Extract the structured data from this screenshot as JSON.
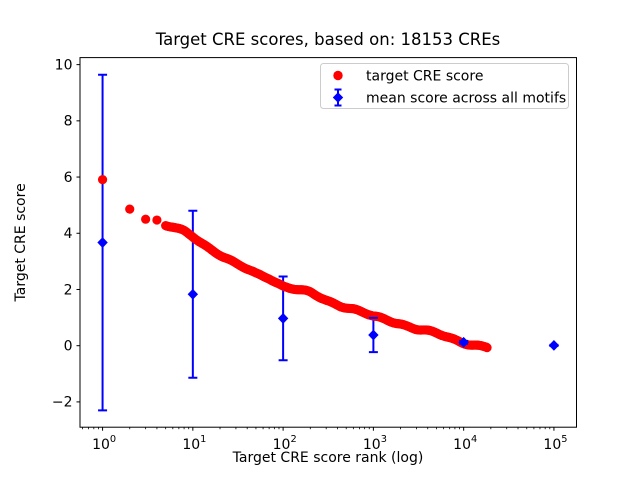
{
  "colors": {
    "background": "#ffffff",
    "axis": "#000000",
    "text": "#000000",
    "legend_border": "#cccccc",
    "red_series": "#ff0000",
    "blue_series": "#0000ff"
  },
  "chart_data": {
    "type": "scatter",
    "title": "Target CRE scores, based on: 18153 CREs",
    "xlabel": "Target CRE score rank (log)",
    "ylabel": "Target CRE score",
    "n_cres": 18153,
    "grid": false,
    "x_axis": {
      "scale": "log",
      "lim_log10": [
        -0.25,
        5.25
      ],
      "major_tick_values": [
        1,
        10,
        100,
        1000,
        10000,
        100000
      ],
      "tick_label_base": "10",
      "tick_exponents": [
        "0",
        "1",
        "2",
        "3",
        "4",
        "5"
      ],
      "minor_ticks": true
    },
    "y_axis": {
      "scale": "linear",
      "lim": [
        -2.9,
        10.25
      ],
      "major_tick_values": [
        -2,
        0,
        2,
        4,
        6,
        8,
        10
      ],
      "tick_labels": [
        "−2",
        "0",
        "2",
        "4",
        "6",
        "8",
        "10"
      ],
      "minor_ticks": false
    },
    "legend": {
      "position": "upper right",
      "entries": [
        {
          "label": "target CRE score",
          "marker": "circle",
          "color": "#ff0000"
        },
        {
          "label": "mean score across all motifs",
          "marker": "diamond-errorbar",
          "color": "#0000ff"
        }
      ]
    },
    "series": [
      {
        "name": "target CRE score",
        "marker": "circle",
        "color": "#ff0000",
        "note": "18153 ranked CRE scores; dense monotone decreasing band sampled at anchor points [rank, score]",
        "discrete_until_rank": 4,
        "max_rank": 18153,
        "anchors": [
          [
            1,
            5.91
          ],
          [
            2,
            4.86
          ],
          [
            3,
            4.5
          ],
          [
            4,
            4.47
          ],
          [
            5,
            4.28
          ],
          [
            6,
            4.21
          ],
          [
            7,
            4.12
          ],
          [
            8,
            4.04
          ],
          [
            9,
            3.95
          ],
          [
            10,
            3.87
          ],
          [
            15,
            3.5
          ],
          [
            20,
            3.26
          ],
          [
            30,
            2.9
          ],
          [
            50,
            2.55
          ],
          [
            70,
            2.43
          ],
          [
            100,
            2.13
          ],
          [
            150,
            1.97
          ],
          [
            200,
            1.87
          ],
          [
            300,
            1.62
          ],
          [
            430,
            1.45
          ],
          [
            600,
            1.3
          ],
          [
            1000,
            1.02
          ],
          [
            1500,
            0.9
          ],
          [
            2000,
            0.8
          ],
          [
            3000,
            0.6
          ],
          [
            5000,
            0.42
          ],
          [
            7000,
            0.28
          ],
          [
            10000,
            0.13
          ],
          [
            12500,
            0.05
          ],
          [
            16000,
            -0.03
          ],
          [
            18153,
            -0.07
          ]
        ]
      },
      {
        "name": "mean score across all motifs",
        "marker": "diamond",
        "color": "#0000ff",
        "error_bars": true,
        "points": [
          {
            "x": 1,
            "mean": 3.67,
            "err": 5.97
          },
          {
            "x": 10,
            "mean": 1.83,
            "err": 2.97
          },
          {
            "x": 100,
            "mean": 0.97,
            "err": 1.49
          },
          {
            "x": 1000,
            "mean": 0.38,
            "err": 0.61
          },
          {
            "x": 10000,
            "mean": 0.12,
            "err": 0.05
          },
          {
            "x": 100000,
            "mean": 0.01,
            "err": 0.02
          }
        ]
      }
    ]
  }
}
